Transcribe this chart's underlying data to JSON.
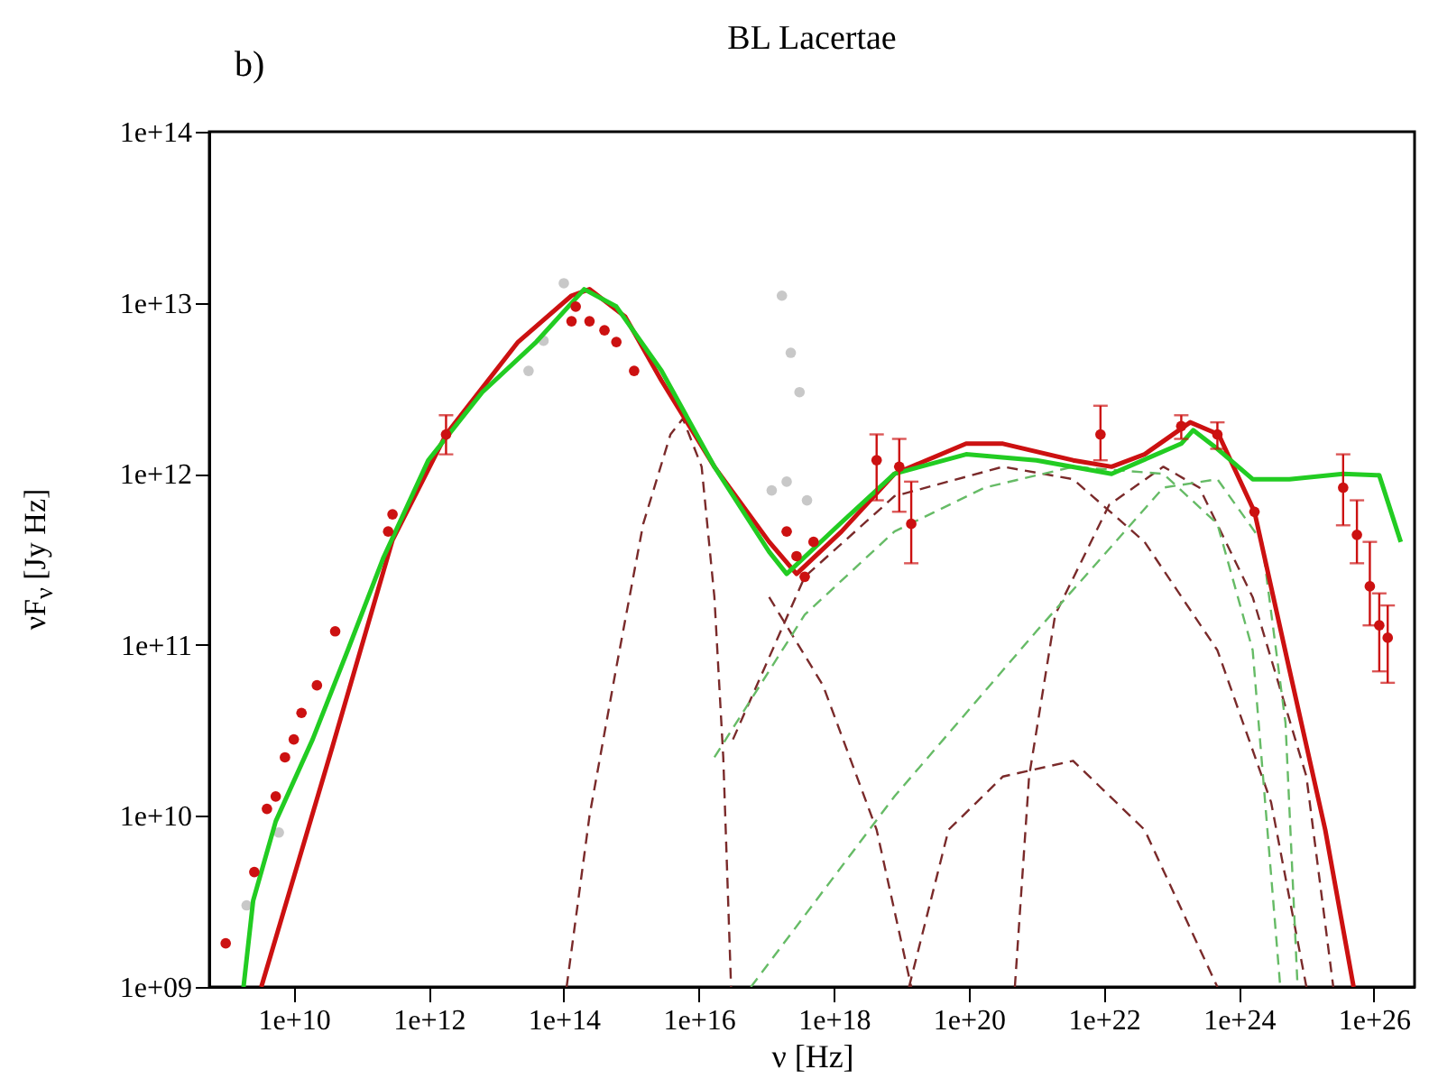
{
  "chart_data": {
    "type": "line",
    "title": "BL Lacertae",
    "xlabel": "ν [Hz]",
    "ylabel": "νF$_{ν}$ [Jy Hz]",
    "annotations": [
      "b)"
    ],
    "log": "xy",
    "xlim": [
      560000000.0,
      4e+26
    ],
    "ylim": [
      1000000000.0,
      100000000000000.0
    ],
    "xticks": [
      {
        "value": 10000000000.0,
        "label": "1e+10"
      },
      {
        "value": 1000000000000.0,
        "label": "1e+12"
      },
      {
        "value": 100000000000000.0,
        "label": "1e+14"
      },
      {
        "value": 1e+16,
        "label": "1e+16"
      },
      {
        "value": 1e+18,
        "label": "1e+18"
      },
      {
        "value": 1e+20,
        "label": "1e+20"
      },
      {
        "value": 1e+22,
        "label": "1e+22"
      },
      {
        "value": 1e+24,
        "label": "1e+24"
      },
      {
        "value": 1e+26,
        "label": "1e+26"
      }
    ],
    "yticks": [
      {
        "value": 1000000000.0,
        "label": "1e+09"
      },
      {
        "value": 10000000000.0,
        "label": "1e+10"
      },
      {
        "value": 100000000000.0,
        "label": "1e+11"
      },
      {
        "value": 1000000000000.0,
        "label": "1e+12"
      },
      {
        "value": 10000000000000.0,
        "label": "1e+13"
      },
      {
        "value": 100000000000000.0,
        "label": "1e+14"
      }
    ],
    "series": [
      {
        "color": "#7a2a2a",
        "line_style": "dashed",
        "x": [
          110000000000000.0,
          240000000000000.0,
          600000000000000.0,
          1500000000000000.0,
          3800000000000000.0,
          5800000000000000.0,
          1.1e+16,
          1.7e+16,
          2.3e+16,
          3e+16
        ],
        "values": [
          1000000000.0,
          10000000000.0,
          74000000000.0,
          510000000000.0,
          1700000000000.0,
          2100000000000.0,
          1100000000000.0,
          190000000000.0,
          22000000000.0,
          1000000000.0
        ]
      },
      {
        "color": "#7a2a2a",
        "line_style": "dashed",
        "x": [
          3.2e+16,
          3.7e+17,
          7.9e+18,
          3.2e+20,
          3.5e+21,
          4e+22,
          4.8e+23,
          3e+24,
          1e+25
        ],
        "values": [
          28000000000.0,
          250000000000.0,
          740000000000.0,
          1100000000000.0,
          930000000000.0,
          400000000000.0,
          93000000000.0,
          12000000000.0,
          1000000000.0
        ]
      },
      {
        "color": "#7a2a2a",
        "line_style": "dashed",
        "x": [
          1.3e+19,
          5e+19,
          3.2e+20,
          3.5e+21,
          4e+22,
          4.8e+23
        ],
        "values": [
          1000000000.0,
          8300000000.0,
          17000000000.0,
          21000000000.0,
          8300000000.0,
          1000000000.0
        ]
      },
      {
        "color": "#7a2a2a",
        "line_style": "dashed",
        "x": [
          4.8e+20,
          7.8e+20,
          1.9e+21,
          1.2e+22,
          7.6e+22,
          2.6e+23,
          1.6e+24,
          1e+25,
          2.5e+25
        ],
        "values": [
          1000000000.0,
          17000000000.0,
          150000000000.0,
          660000000000.0,
          1100000000000.0,
          830000000000.0,
          190000000000.0,
          17000000000.0,
          1000000000.0
        ]
      },
      {
        "color": "#7a2a2a",
        "line_style": "dashed",
        "x": [
          1.1e+17,
          6.9e+17,
          4.3e+18,
          1.4e+19
        ],
        "values": [
          190000000000.0,
          58000000000.0,
          8300000000.0,
          1000000000.0
        ]
      },
      {
        "color": "#66bb66",
        "line_style": "dashed",
        "x": [
          1.7e+16,
          3.7e+17,
          7.9e+18,
          1.7e+20,
          3.5e+21,
          7.6e+22,
          4.8e+23,
          1.6e+24,
          4.1e+24
        ],
        "values": [
          22000000000.0,
          150000000000.0,
          460000000000.0,
          830000000000.0,
          1100000000000.0,
          1000000000000.0,
          510000000000.0,
          93000000000.0,
          1000000000.0
        ]
      },
      {
        "color": "#66bb66",
        "line_style": "dashed",
        "x": [
          5.9e+16,
          7.9e+18,
          1e+21,
          7.6e+22,
          4.8e+23,
          2.2e+24,
          4.9e+24,
          7.4e+24
        ],
        "values": [
          1000000000.0,
          13000000000.0,
          120000000000.0,
          830000000000.0,
          930000000000.0,
          400000000000.0,
          35000000000.0,
          1000000000.0
        ]
      },
      {
        "type": "scatter",
        "color": "#c8c8c8",
        "marker": "circle",
        "x": [
          100000000000000.0,
          30000000000000.0,
          50000000000000.0,
          1.7e+17,
          2.3e+17,
          3.1e+17,
          1.2e+17,
          4e+17,
          2e+17,
          2000000000.0,
          6000000000.0
        ],
        "values": [
          13000000000000.0,
          4000000000000.0,
          6000000000000.0,
          11000000000000.0,
          5100000000000.0,
          3000000000000.0,
          800000000000.0,
          700000000000.0,
          900000000000.0,
          3000000000.0,
          8000000000.0
        ]
      },
      {
        "color": "#cc1111",
        "line_style": "solid",
        "x": [
          3300000000.0,
          38000000000.0,
          290000000000.0,
          1800000000000.0,
          21000000000000.0,
          130000000000000.0,
          240000000000000.0,
          810000000000000.0,
          2800000000000000.0,
          1.7e+16,
          1.1e+17,
          2.8e+17,
          1.3e+18,
          7.9e+18,
          9.1e+19,
          3.2e+20,
          3.5e+21,
          1.3e+22,
          4e+22,
          1.9e+23,
          5e+23,
          1.7e+24,
          5.5e+24,
          1.9e+25,
          5e+25
        ],
        "values": [
          1000000000.0,
          26000000000.0,
          410000000000.0,
          1700000000000.0,
          5900000000000.0,
          11000000000000.0,
          12000000000000.0,
          8300000000000.0,
          3500000000000.0,
          1100000000000.0,
          400000000000.0,
          260000000000.0,
          460000000000.0,
          1000000000000.0,
          1500000000000.0,
          1500000000000.0,
          1200000000000.0,
          1100000000000.0,
          1300000000000.0,
          2000000000000.0,
          1700000000000.0,
          600000000000.0,
          74000000000.0,
          8300000000.0,
          1000000000.0
        ]
      },
      {
        "color": "#22cc22",
        "line_style": "solid",
        "x": [
          1800000000.0,
          2500000000.0,
          5400000000.0,
          19000000000.0,
          63000000000.0,
          210000000000.0,
          980000000000.0,
          6200000000000.0,
          39000000000000.0,
          200000000000000.0,
          600000000000000.0,
          2800000000000000.0,
          1.7e+16,
          1.1e+17,
          2e+17,
          1.3e+18,
          7.9e+18,
          9.1e+19,
          1e+21,
          1.3e+22,
          1.4e+23,
          2.1e+23,
          4.8e+23,
          1.6e+24,
          5.6e+24,
          3.5e+25,
          1.2e+26,
          2.5e+26
        ],
        "values": [
          1000000000.0,
          3200000000.0,
          9300000000.0,
          28000000000.0,
          93000000000.0,
          320000000000.0,
          1200000000000.0,
          3000000000000.0,
          5900000000000.0,
          12000000000000.0,
          9500000000000.0,
          4000000000000.0,
          1100000000000.0,
          350000000000.0,
          260000000000.0,
          520000000000.0,
          1000000000000.0,
          1300000000000.0,
          1200000000000.0,
          1000000000000.0,
          1500000000000.0,
          1800000000000.0,
          1400000000000.0,
          930000000000.0,
          930000000000.0,
          1000000000000.0,
          980000000000.0,
          400000000000.0
        ]
      },
      {
        "type": "scatter",
        "color": "#cc1111",
        "marker": "circle",
        "x": [
          980000000.0,
          2600000000.0,
          4000000000.0,
          5400000000.0,
          7400000000.0,
          10000000000.0,
          13000000000.0,
          22000000000.0,
          41000000000.0,
          250000000000.0,
          290000000000.0,
          1800000000000.0,
          130000000000000.0,
          150000000000000.0,
          240000000000000.0,
          400000000000000.0,
          600000000000000.0,
          1100000000000000.0,
          2e+17,
          2.8e+17,
          3.7e+17,
          5e+17,
          4.3e+18,
          9.3e+18,
          1.4e+19,
          8.9e+21,
          1.4e+23,
          4.8e+23,
          1.7e+24,
          3.5e+25,
          5.6e+25,
          8.7e+25,
          1.2e+26,
          1.6e+26
        ],
        "values": [
          1800000000.0,
          4700000000.0,
          11000000000.0,
          13000000000.0,
          22000000000.0,
          28000000000.0,
          40000000000.0,
          58000000000.0,
          120000000000.0,
          460000000000.0,
          580000000000.0,
          1700000000000.0,
          7800000000000.0,
          9500000000000.0,
          7800000000000.0,
          6900000000000.0,
          5900000000000.0,
          4000000000000.0,
          460000000000.0,
          330000000000.0,
          250000000000.0,
          400000000000.0,
          1200000000000.0,
          1100000000000.0,
          510000000000.0,
          1700000000000.0,
          1900000000000.0,
          1700000000000.0,
          600000000000.0,
          830000000000.0,
          440000000000.0,
          220000000000.0,
          130000000000.0,
          110000000000.0
        ],
        "errors": [
          null,
          null,
          null,
          null,
          null,
          null,
          null,
          null,
          null,
          null,
          null,
          [
            1300000000000.0,
            2200000000000.0
          ],
          null,
          null,
          null,
          null,
          null,
          null,
          null,
          null,
          null,
          null,
          [
            700000000000.0,
            1700000000000.0
          ],
          [
            600000000000.0,
            1600000000000.0
          ],
          [
            300000000000.0,
            900000000000.0
          ],
          [
            1200000000000.0,
            2500000000000.0
          ],
          [
            1600000000000.0,
            2200000000000.0
          ],
          [
            1400000000000.0,
            2000000000000.0
          ],
          null,
          [
            500000000000.0,
            1300000000000.0
          ],
          [
            300000000000.0,
            700000000000.0
          ],
          [
            130000000000.0,
            400000000000.0
          ],
          [
            70000000000.0,
            200000000000.0
          ],
          [
            60000000000.0,
            170000000000.0
          ]
        ]
      }
    ]
  }
}
